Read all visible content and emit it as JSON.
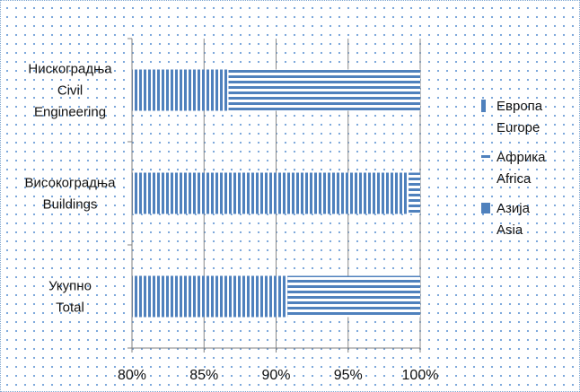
{
  "chart_data": {
    "type": "bar",
    "orientation": "horizontal",
    "stacked": "percent",
    "categories": [
      [
        "Нискоградња",
        "Civil",
        "Engineering"
      ],
      [
        "Високоградња",
        "Buildings"
      ],
      [
        "Укупно",
        "Total"
      ]
    ],
    "series": [
      {
        "name": "Европа Europe",
        "name_lines": [
          "Европа",
          "Europe"
        ],
        "pattern": "vertical-stripes",
        "values": [
          86.7,
          99.2,
          90.8
        ]
      },
      {
        "name": "Африка Africa",
        "name_lines": [
          "Африка",
          "Africa"
        ],
        "pattern": "horizontal-stripes",
        "values": [
          13.3,
          0.8,
          9.2
        ]
      },
      {
        "name": "Азија Asia",
        "name_lines": [
          "Азија",
          "Asia"
        ],
        "pattern": "solid",
        "values": [
          0,
          0,
          0
        ]
      }
    ],
    "x_ticks": [
      "80%",
      "85%",
      "90%",
      "95%",
      "100%"
    ],
    "xlim": [
      80,
      100
    ],
    "grid": true,
    "legend_position": "right",
    "title": "",
    "xlabel": "",
    "ylabel": "",
    "colors": {
      "bar": "#4f81bd",
      "grid": "#8a8a8a",
      "axis": "#808080"
    }
  }
}
